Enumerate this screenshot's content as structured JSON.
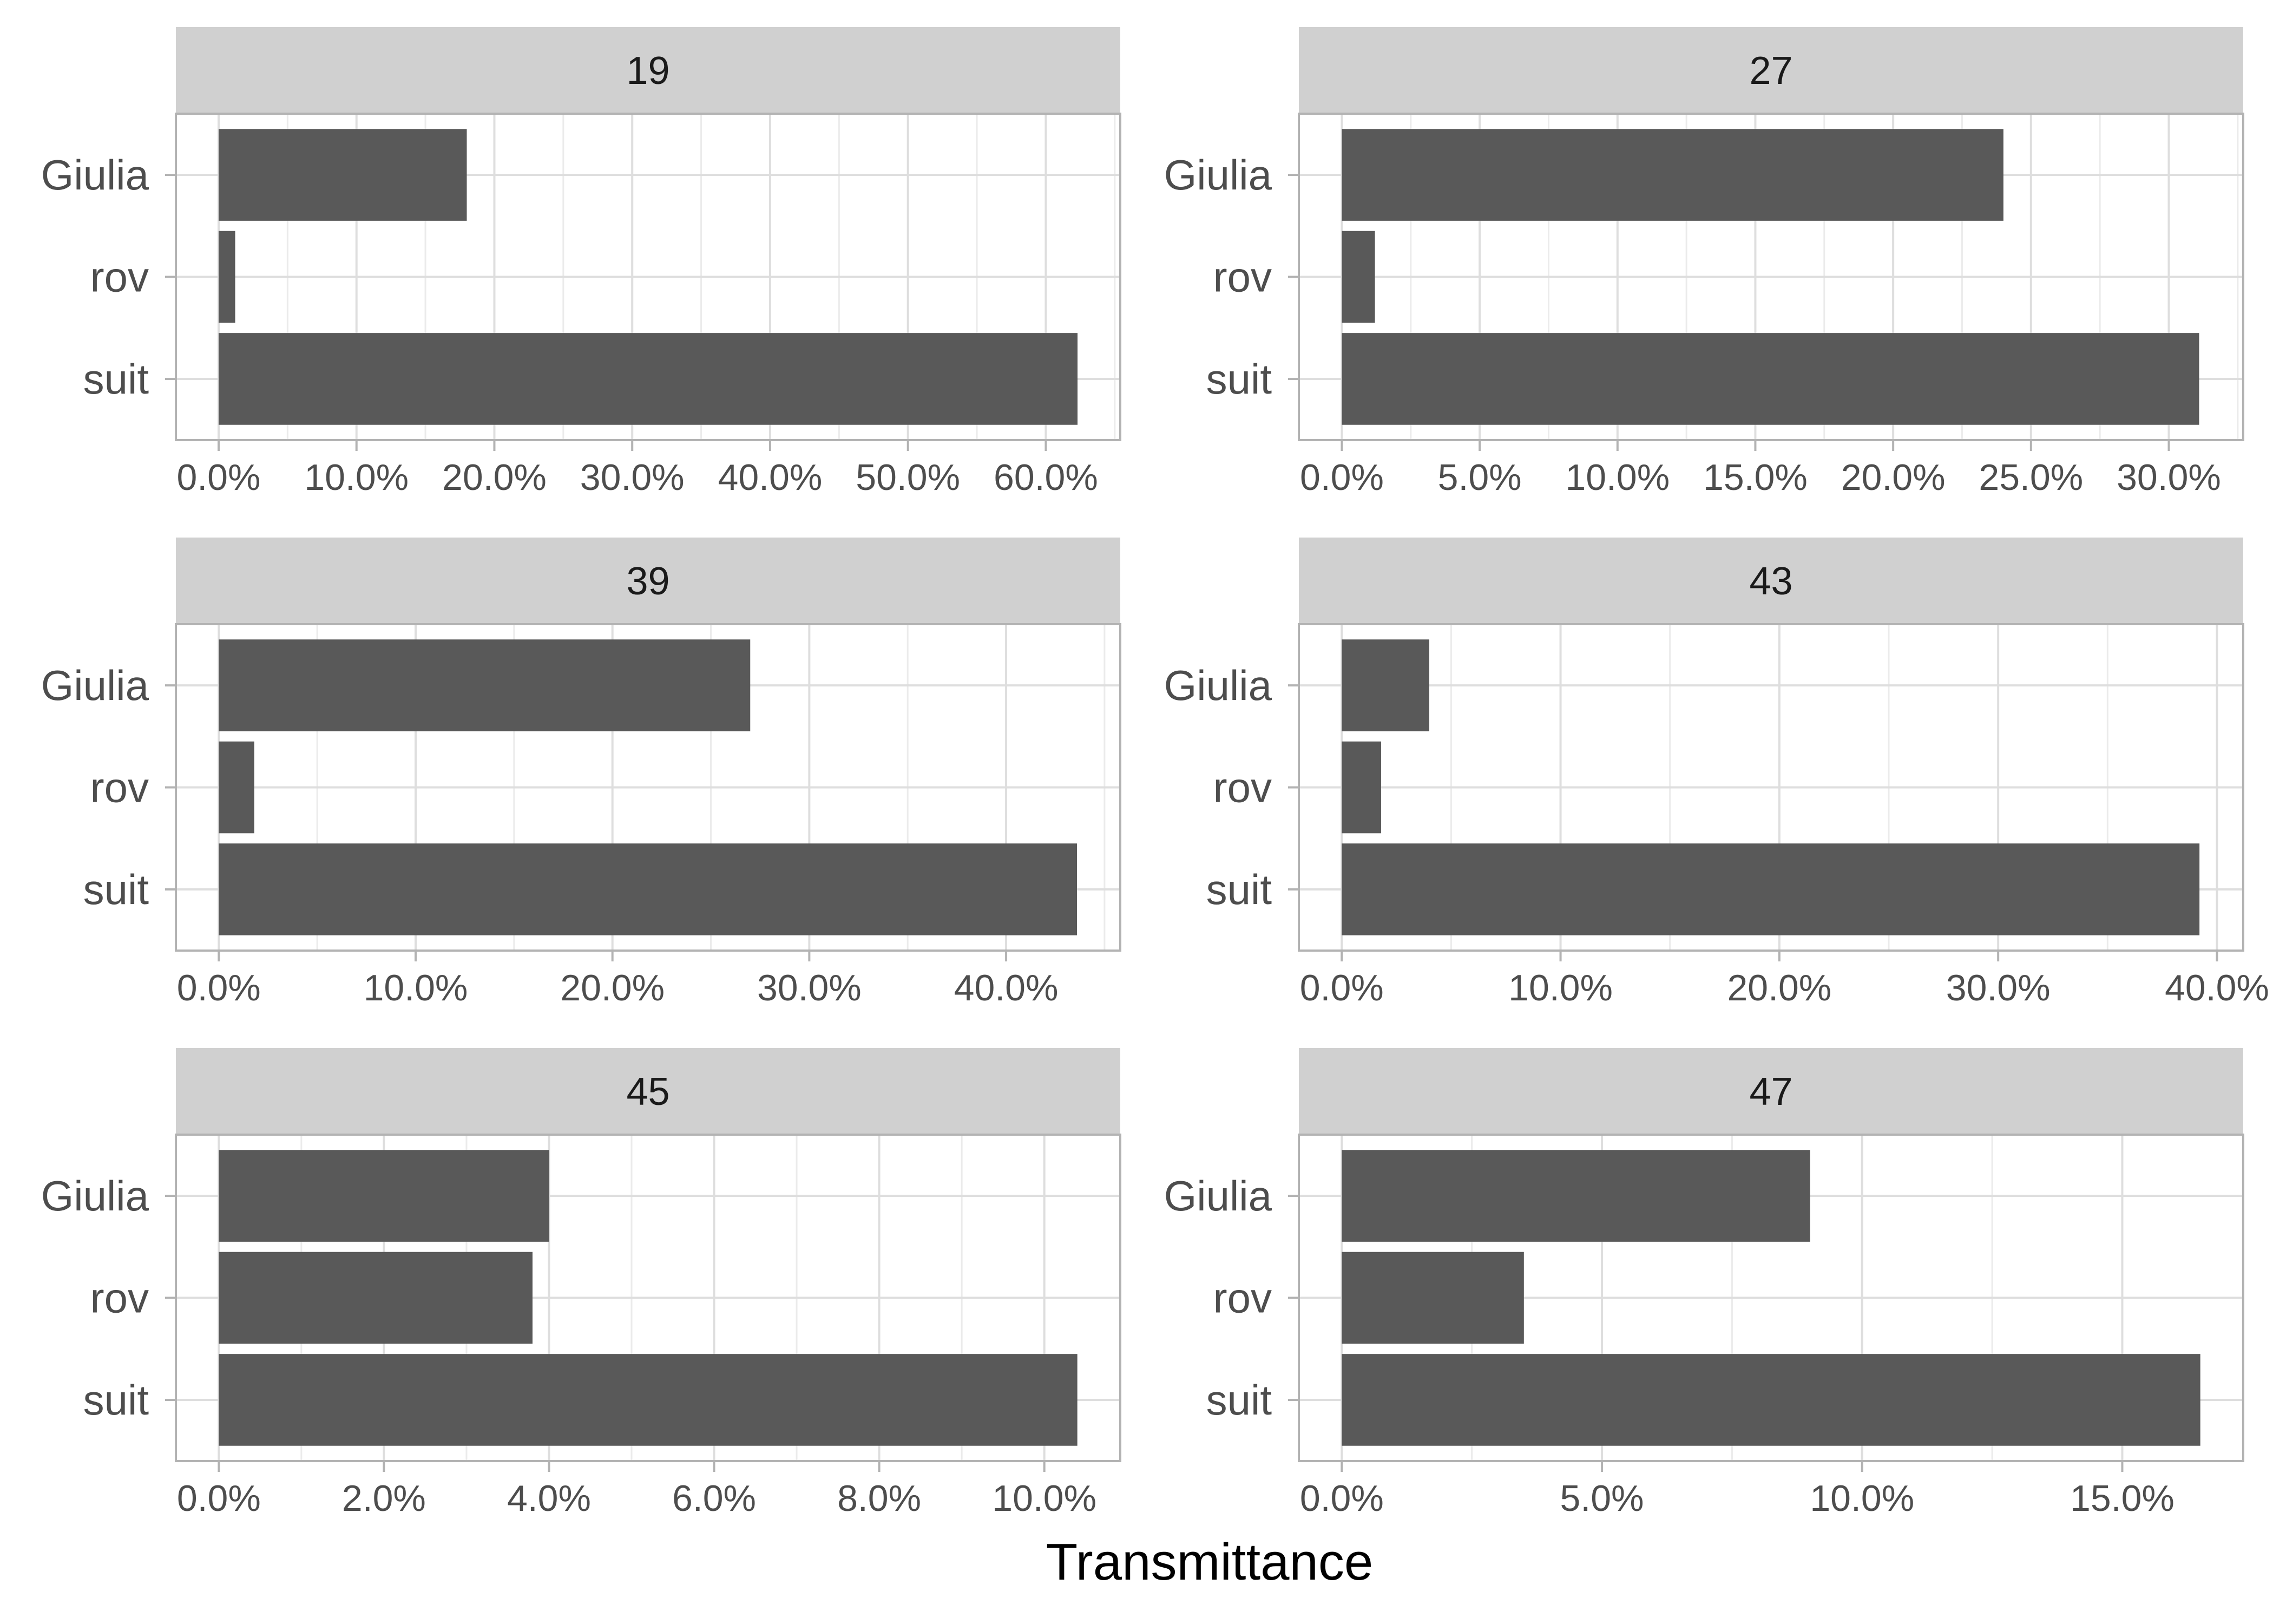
{
  "chart_data": {
    "type": "bar",
    "orientation": "horizontal",
    "xlabel": "Transmittance",
    "ylabel": "",
    "categories": [
      "suit",
      "rov",
      "Giulia"
    ],
    "grid": true,
    "bar_color": "#595959",
    "strip_color": "#d0d0d0",
    "facets": [
      {
        "label": "19",
        "values": [
          62.3,
          1.2,
          18.0
        ],
        "ticks": [
          0,
          10,
          20,
          30,
          40,
          50,
          60
        ],
        "tick_labels": [
          "0.0%",
          "10.0%",
          "20.0%",
          "30.0%",
          "40.0%",
          "50.0%",
          "60.0%"
        ],
        "xlim": [
          -3.1,
          65.4
        ]
      },
      {
        "label": "27",
        "values": [
          31.1,
          1.2,
          24.0
        ],
        "ticks": [
          0,
          5,
          10,
          15,
          20,
          25,
          30
        ],
        "tick_labels": [
          "0.0%",
          "5.0%",
          "10.0%",
          "15.0%",
          "20.0%",
          "25.0%",
          "30.0%"
        ],
        "xlim": [
          -1.56,
          32.7
        ]
      },
      {
        "label": "39",
        "values": [
          43.6,
          1.8,
          27.0
        ],
        "ticks": [
          0,
          10,
          20,
          30,
          40
        ],
        "tick_labels": [
          "0.0%",
          "10.0%",
          "20.0%",
          "30.0%",
          "40.0%"
        ],
        "xlim": [
          -2.18,
          45.8
        ]
      },
      {
        "label": "43",
        "values": [
          39.2,
          1.8,
          4.0
        ],
        "ticks": [
          0,
          10,
          20,
          30,
          40
        ],
        "tick_labels": [
          "0.0%",
          "10.0%",
          "20.0%",
          "30.0%",
          "40.0%"
        ],
        "xlim": [
          -1.96,
          41.2
        ]
      },
      {
        "label": "45",
        "values": [
          10.4,
          3.8,
          4.0
        ],
        "ticks": [
          0,
          2,
          4,
          6,
          8,
          10
        ],
        "tick_labels": [
          "0.0%",
          "2.0%",
          "4.0%",
          "6.0%",
          "8.0%",
          "10.0%"
        ],
        "xlim": [
          -0.52,
          10.92
        ]
      },
      {
        "label": "47",
        "values": [
          16.5,
          3.5,
          9.0
        ],
        "ticks": [
          0,
          5,
          10,
          15
        ],
        "tick_labels": [
          "0.0%",
          "5.0%",
          "10.0%",
          "15.0%"
        ],
        "xlim": [
          -0.825,
          17.325
        ]
      }
    ]
  }
}
